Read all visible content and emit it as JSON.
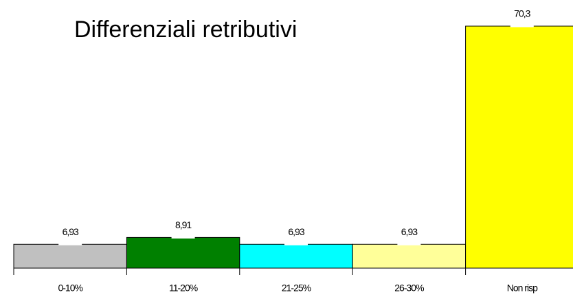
{
  "chart_data": {
    "type": "bar",
    "title": "Differenziali retributivi",
    "categories": [
      "0-10%",
      "11-20%",
      "21-25%",
      "26-30%",
      "Non risp"
    ],
    "values": [
      6.93,
      8.91,
      6.93,
      6.93,
      70.3
    ],
    "value_labels": [
      "6,93",
      "8,91",
      "6,93",
      "6,93",
      "70,3"
    ],
    "colors": [
      "#c0c0c0",
      "#008000",
      "#00ffff",
      "#ffff99",
      "#ffff00"
    ]
  }
}
